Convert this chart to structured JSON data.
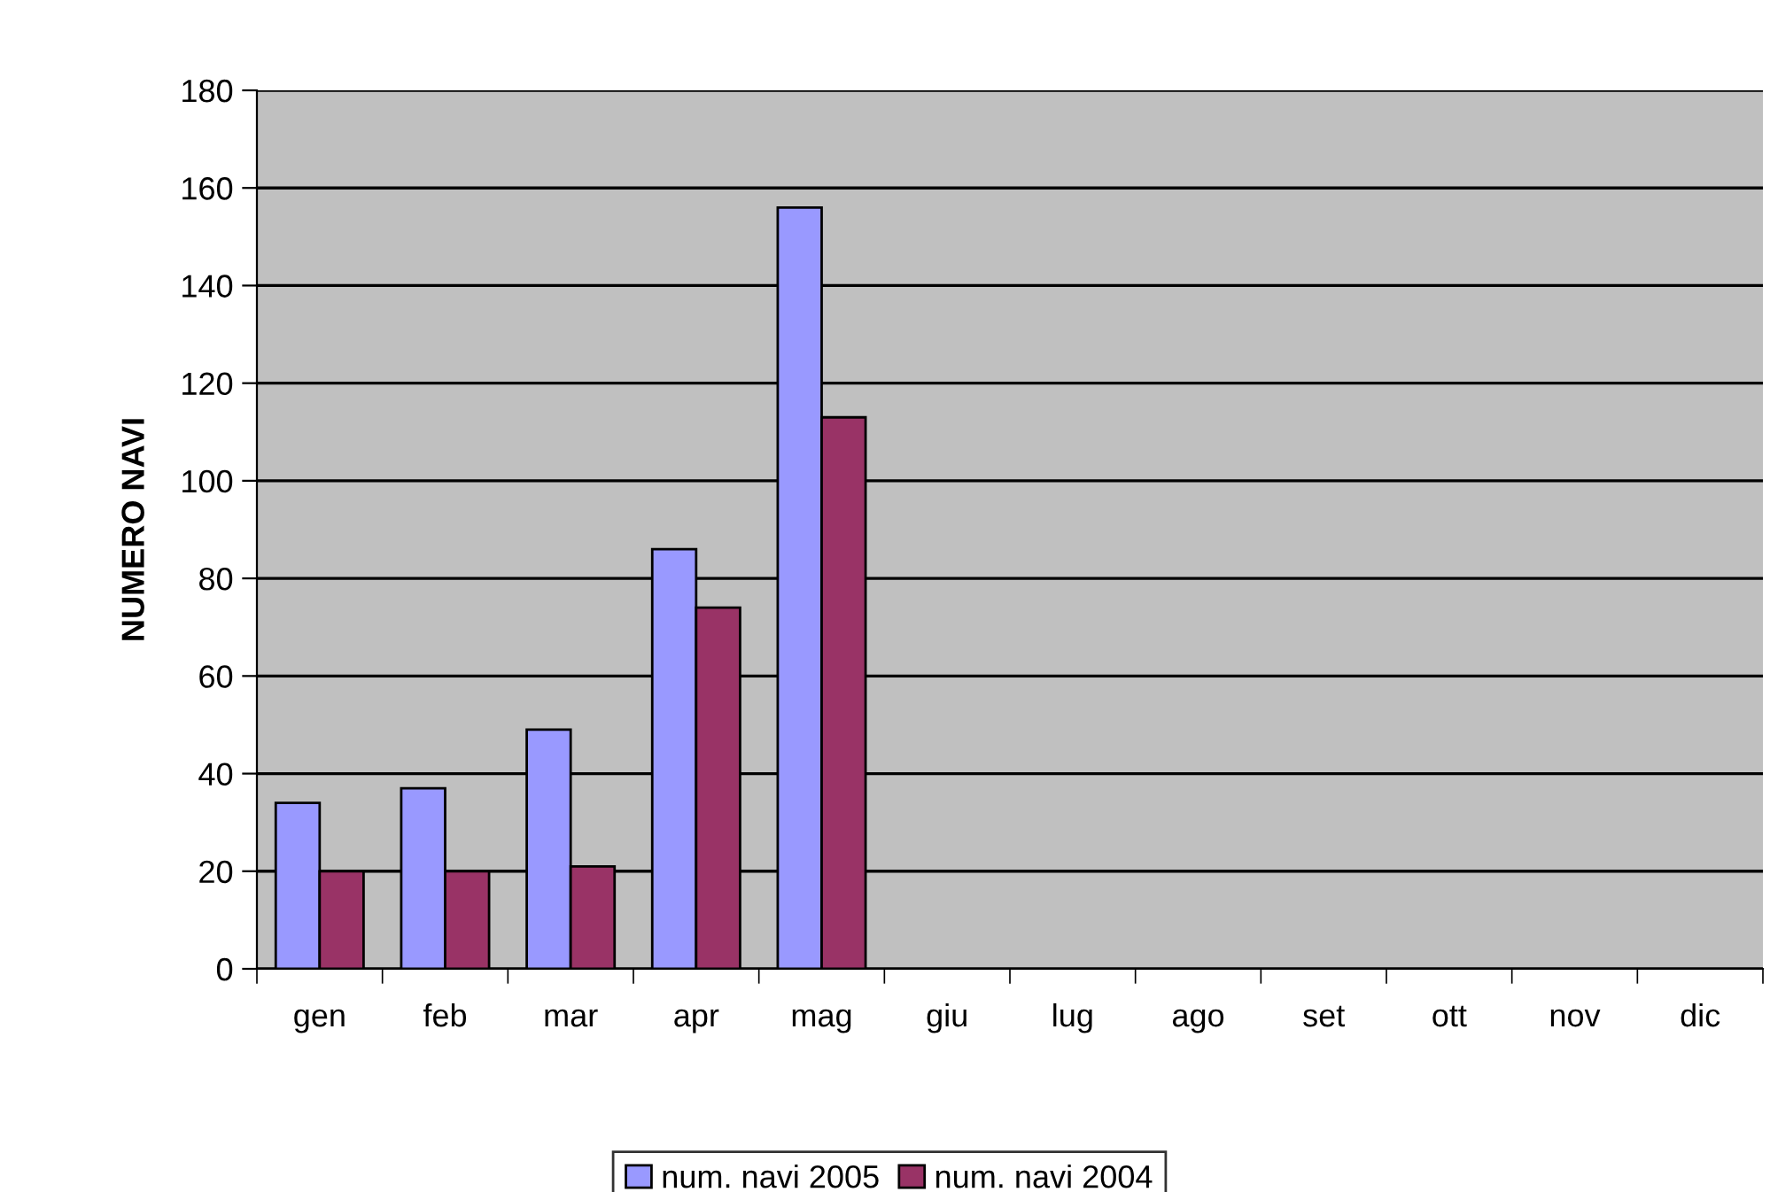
{
  "chart_data": {
    "type": "bar",
    "ylabel": "NUMERO NAVI",
    "categories": [
      "gen",
      "feb",
      "mar",
      "apr",
      "mag",
      "giu",
      "lug",
      "ago",
      "set",
      "ott",
      "nov",
      "dic"
    ],
    "series": [
      {
        "name": "num. navi 2005",
        "color": "#9999ff",
        "values": [
          34,
          37,
          49,
          86,
          156,
          null,
          null,
          null,
          null,
          null,
          null,
          null
        ]
      },
      {
        "name": "num. navi 2004",
        "color": "#993366",
        "values": [
          20,
          20,
          21,
          74,
          113,
          null,
          null,
          null,
          null,
          null,
          null,
          null
        ]
      }
    ],
    "ylim": [
      0,
      180
    ],
    "yticks": [
      0,
      20,
      40,
      60,
      80,
      100,
      120,
      140,
      160,
      180
    ],
    "grid": "y",
    "legend": "bottom"
  }
}
